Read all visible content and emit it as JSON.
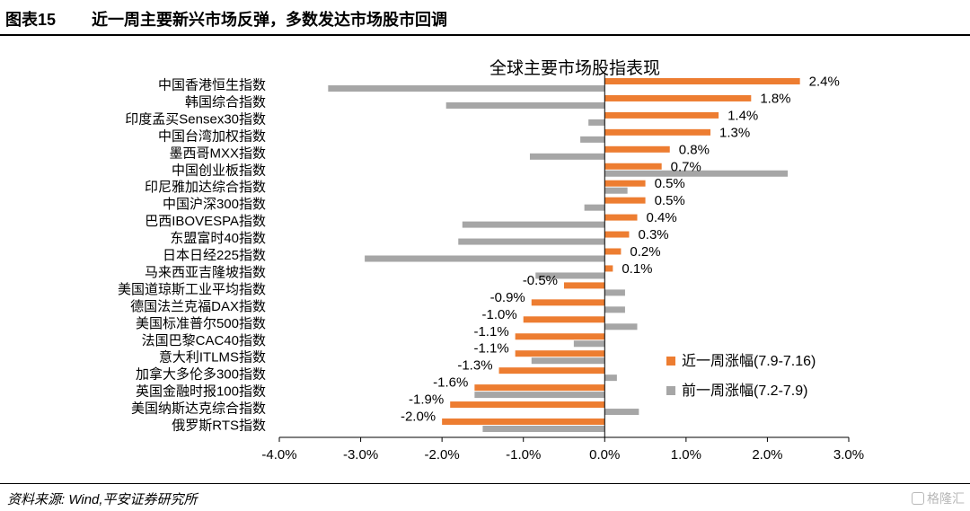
{
  "figure": {
    "number": "图表15",
    "title": "近一周主要新兴市场反弹，多数发达市场股市回调"
  },
  "footer": {
    "source": "资料来源: Wind,平安证券研究所",
    "watermark": "格隆汇"
  },
  "colors": {
    "recent": "#ED7D31",
    "previous": "#A6A6A6"
  },
  "chart_data": {
    "type": "bar",
    "orientation": "horizontal",
    "title": "全球主要市场股指表现",
    "categories": [
      "中国香港恒生指数",
      "韩国综合指数",
      "印度孟买Sensex30指数",
      "中国台湾加权指数",
      "墨西哥MXX指数",
      "中国创业板指数",
      "印尼雅加达综合指数",
      "中国沪深300指数",
      "巴西IBOVESPA指数",
      "东盟富时40指数",
      "日本日经225指数",
      "马来西亚吉隆坡指数",
      "美国道琼斯工业平均指数",
      "德国法兰克福DAX指数",
      "美国标准普尔500指数",
      "法国巴黎CAC40指数",
      "意大利ITLMS指数",
      "加拿大多伦多300指数",
      "英国金融时报100指数",
      "美国纳斯达克综合指数",
      "俄罗斯RTS指数"
    ],
    "series": [
      {
        "name": "近一周涨幅(7.9-7.16)",
        "values": [
          2.4,
          1.8,
          1.4,
          1.3,
          0.8,
          0.7,
          0.5,
          0.5,
          0.4,
          0.3,
          0.2,
          0.1,
          -0.5,
          -0.9,
          -1.0,
          -1.1,
          -1.1,
          -1.3,
          -1.6,
          -1.9,
          -2.0
        ],
        "labels": [
          "2.4%",
          "1.8%",
          "1.4%",
          "1.3%",
          "0.8%",
          "0.7%",
          "0.5%",
          "0.5%",
          "0.4%",
          "0.3%",
          "0.2%",
          "0.1%",
          "-0.5%",
          "-0.9%",
          "-1.0%",
          "-1.1%",
          "-1.1%",
          "-1.3%",
          "-1.6%",
          "-1.9%",
          "-2.0%"
        ]
      },
      {
        "name": "前一周涨幅(7.2-7.9)",
        "values": [
          -3.4,
          -1.95,
          -0.2,
          -0.3,
          -0.92,
          2.25,
          0.28,
          -0.25,
          -1.75,
          -1.8,
          -2.95,
          -0.85,
          0.25,
          0.25,
          0.4,
          -0.38,
          -0.9,
          0.15,
          -1.6,
          0.42,
          -1.5
        ]
      }
    ],
    "xlim": [
      -4.0,
      3.0
    ],
    "xticks": [
      -4.0,
      -3.0,
      -2.0,
      -1.0,
      0.0,
      1.0,
      2.0,
      3.0
    ],
    "xtick_labels": [
      "-4.0%",
      "-3.0%",
      "-2.0%",
      "-1.0%",
      "0.0%",
      "1.0%",
      "2.0%",
      "3.0%"
    ],
    "grid": false,
    "legend_position": "lower-right"
  }
}
